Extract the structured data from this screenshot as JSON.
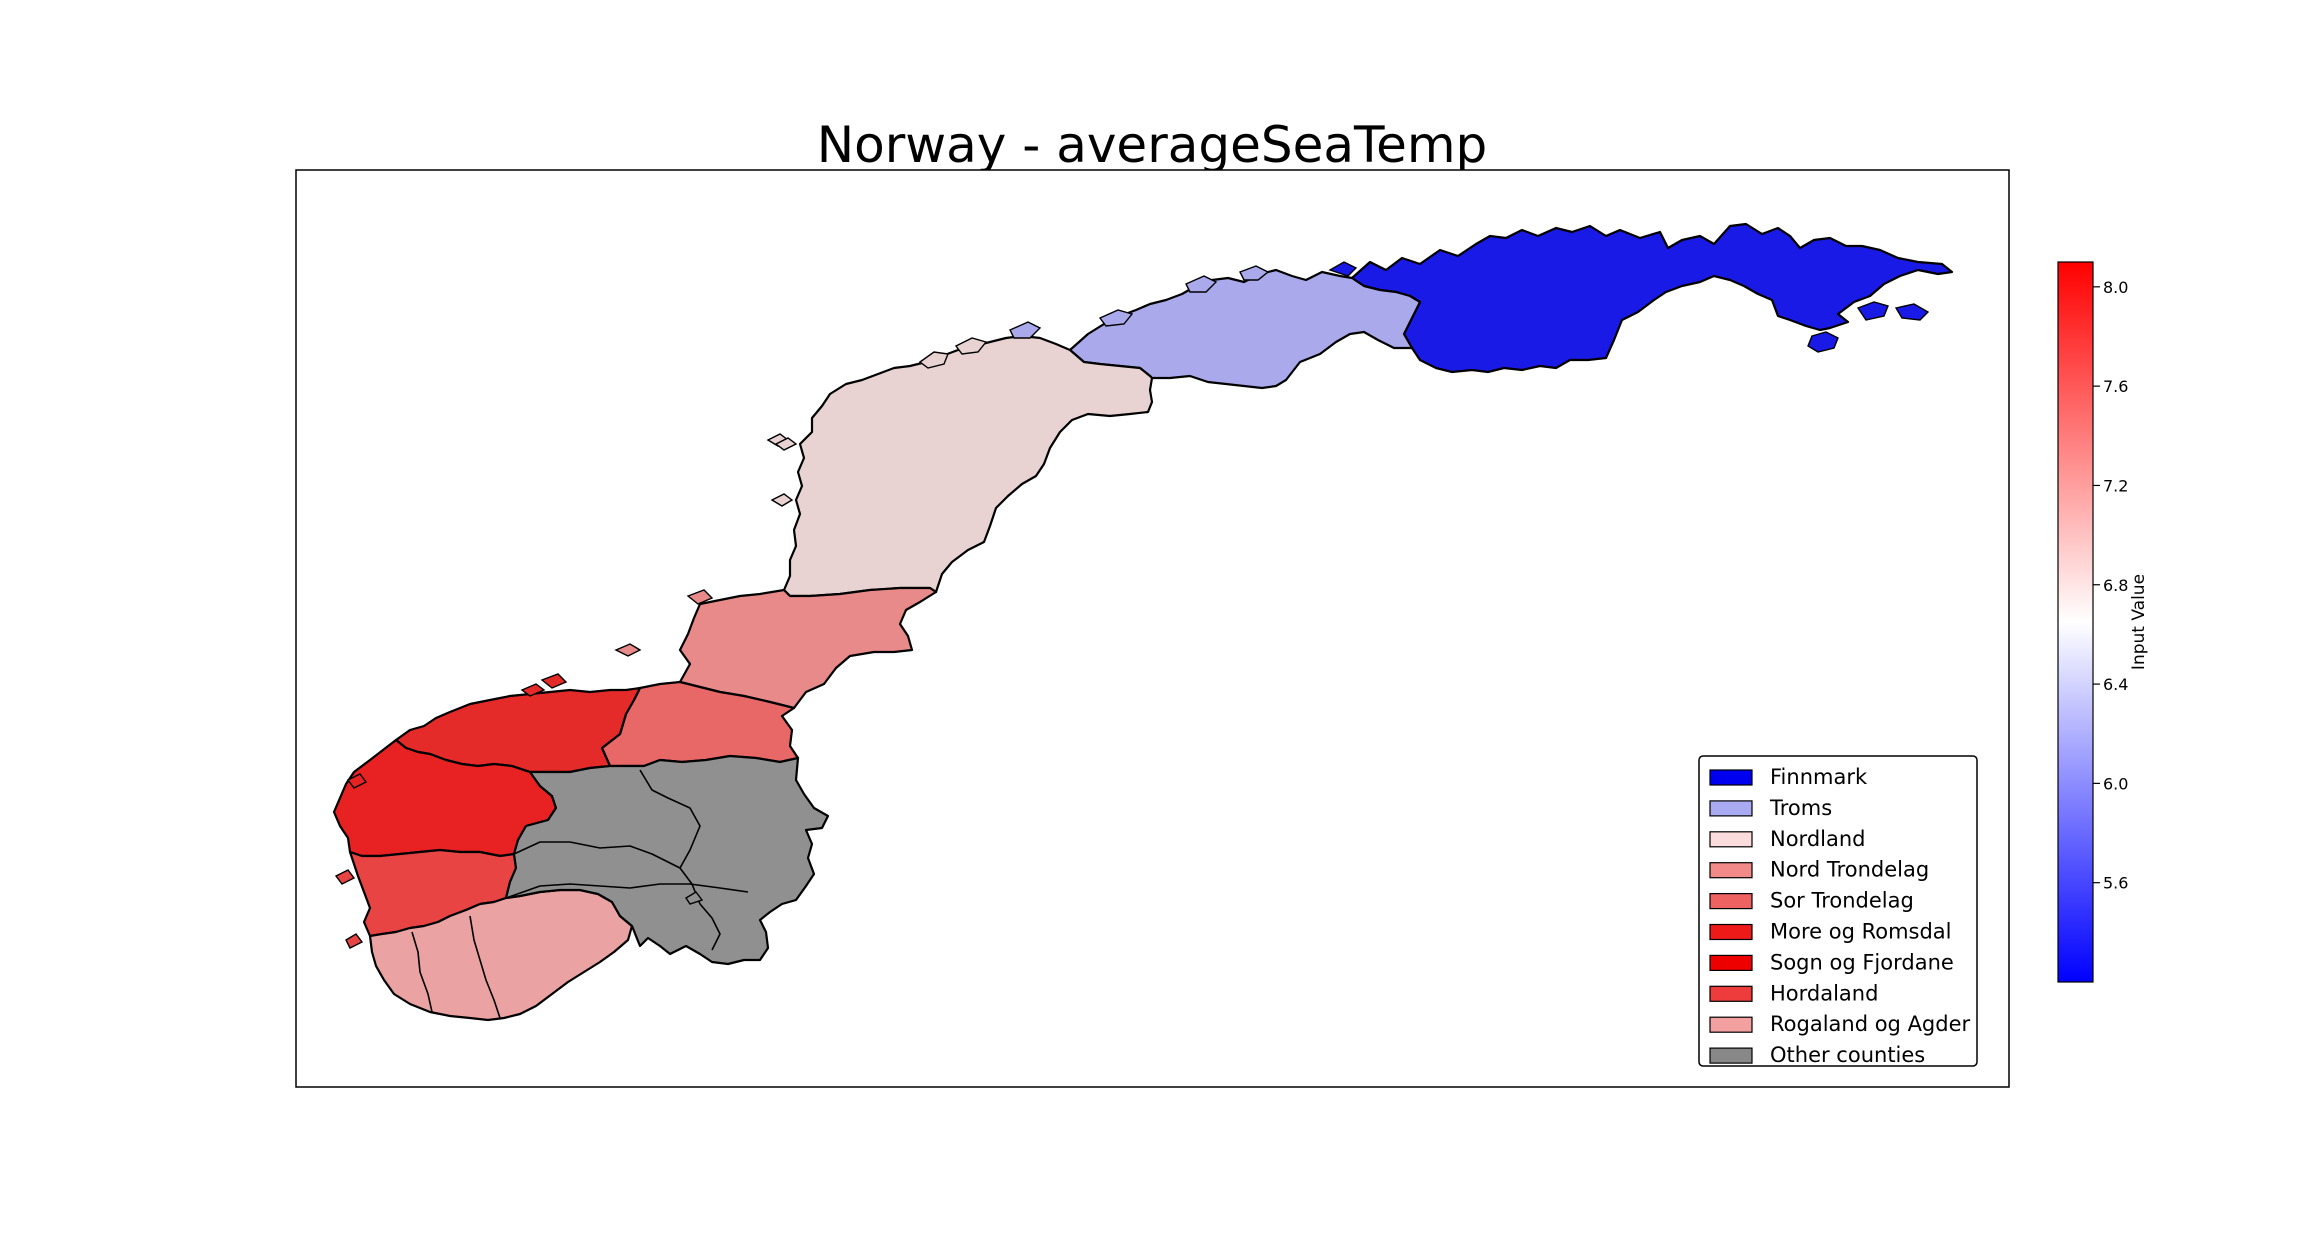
{
  "title": "Norway - averageSeaTemp",
  "colorbar": {
    "label": "Input Value",
    "min": 5.2,
    "max": 8.1,
    "ticks": [
      "8.0",
      "7.6",
      "7.2",
      "6.8",
      "6.4",
      "6.0",
      "5.6"
    ],
    "tick_values": [
      8.0,
      7.6,
      7.2,
      6.8,
      6.4,
      6.0,
      5.6
    ],
    "color_low": "#0000ff",
    "color_mid": "#ffffff",
    "color_high": "#ff0000"
  },
  "regions": [
    {
      "id": "finnmark",
      "name": "Finnmark",
      "color": "#1a1ae6"
    },
    {
      "id": "troms",
      "name": "Troms",
      "color": "#a9a9ec"
    },
    {
      "id": "nordland",
      "name": "Nordland",
      "color": "#e8d2d2"
    },
    {
      "id": "nord_trondelag",
      "name": "Nord Trondelag",
      "color": "#e88a8a"
    },
    {
      "id": "sor_trondelag",
      "name": "Sor Trondelag",
      "color": "#e86767"
    },
    {
      "id": "more_og_romsdal",
      "name": "More og Romsdal",
      "color": "#e52a2a"
    },
    {
      "id": "sogn_og_fjordane",
      "name": "Sogn og Fjordane",
      "color": "#e82222"
    },
    {
      "id": "hordaland",
      "name": "Hordaland",
      "color": "#e84444"
    },
    {
      "id": "rogaland_og_agder",
      "name": "Rogaland og Agder",
      "color": "#eaa2a2"
    },
    {
      "id": "other",
      "name": "Other counties",
      "color": "#909090"
    }
  ],
  "legend": {
    "position": "lower-right",
    "items": [
      {
        "label": "Finnmark",
        "color": "#0000f0"
      },
      {
        "label": "Troms",
        "color": "#aaaaf2"
      },
      {
        "label": "Nordland",
        "color": "#fadcdc"
      },
      {
        "label": "Nord Trondelag",
        "color": "#f28a8a"
      },
      {
        "label": "Sor Trondelag",
        "color": "#ee6262"
      },
      {
        "label": "More og Romsdal",
        "color": "#ee1a1a"
      },
      {
        "label": "Sogn og Fjordane",
        "color": "#ee0000"
      },
      {
        "label": "Hordaland",
        "color": "#ee3c3c"
      },
      {
        "label": "Rogaland og Agder",
        "color": "#f2a0a0"
      },
      {
        "label": "Other counties",
        "color": "#888888"
      }
    ]
  }
}
